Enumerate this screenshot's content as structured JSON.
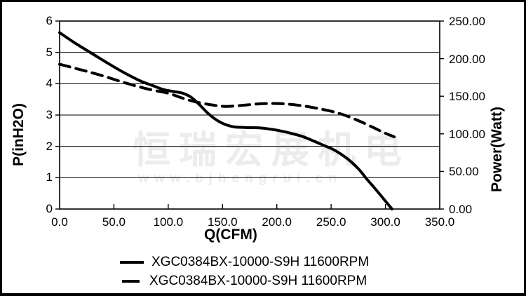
{
  "chart_data": {
    "type": "line",
    "xlabel": "Q(CFM)",
    "ylabel_left": "P(inH2O)",
    "ylabel_right": "Power(Watt)",
    "xlim": [
      0,
      350
    ],
    "ylim_left": [
      0,
      6
    ],
    "ylim_right": [
      0,
      250
    ],
    "grid": "horizontal-only",
    "x_ticks": [
      "0.0",
      "50.0",
      "100.0",
      "150.0",
      "200.0",
      "250.0",
      "300.0",
      "350.0"
    ],
    "x_tick_values": [
      0,
      50,
      100,
      150,
      200,
      250,
      300,
      350
    ],
    "y_left_ticks": [
      "0",
      "1",
      "2",
      "3",
      "4",
      "5",
      "6"
    ],
    "y_left_tick_values": [
      0,
      1,
      2,
      3,
      4,
      5,
      6
    ],
    "y_right_ticks": [
      "0.00",
      "50.00",
      "100.00",
      "150.00",
      "200.00",
      "250.00"
    ],
    "y_right_tick_values": [
      0,
      50,
      100,
      150,
      200,
      250
    ],
    "series": [
      {
        "name": "XGC0384BX-10000-S9H 11600RPM",
        "quantity": "static pressure",
        "axis": "left",
        "unit": "inH2O",
        "style": "solid",
        "points": [
          [
            0,
            5.63
          ],
          [
            15,
            5.28
          ],
          [
            30,
            4.96
          ],
          [
            45,
            4.64
          ],
          [
            60,
            4.34
          ],
          [
            75,
            4.08
          ],
          [
            85,
            3.95
          ],
          [
            95,
            3.82
          ],
          [
            105,
            3.75
          ],
          [
            113,
            3.7
          ],
          [
            121,
            3.57
          ],
          [
            129,
            3.32
          ],
          [
            137,
            3.04
          ],
          [
            145,
            2.83
          ],
          [
            153,
            2.69
          ],
          [
            161,
            2.62
          ],
          [
            172,
            2.6
          ],
          [
            184,
            2.59
          ],
          [
            194,
            2.55
          ],
          [
            204,
            2.49
          ],
          [
            214,
            2.41
          ],
          [
            224,
            2.31
          ],
          [
            234,
            2.17
          ],
          [
            244,
            2.02
          ],
          [
            252,
            1.9
          ],
          [
            260,
            1.73
          ],
          [
            268,
            1.52
          ],
          [
            276,
            1.25
          ],
          [
            283,
            0.95
          ],
          [
            290,
            0.67
          ],
          [
            297,
            0.38
          ],
          [
            302,
            0.17
          ],
          [
            306,
            0.0
          ]
        ]
      },
      {
        "name": "XGC0384BX-10000-S9H 11600RPM",
        "quantity": "power",
        "axis": "right",
        "unit": "Watt",
        "style": "dashed",
        "points": [
          [
            0,
            192.5
          ],
          [
            20,
            185
          ],
          [
            40,
            177
          ],
          [
            60,
            168
          ],
          [
            80,
            160
          ],
          [
            100,
            154
          ],
          [
            112,
            148
          ],
          [
            125,
            142.5
          ],
          [
            140,
            138.5
          ],
          [
            152,
            136.5
          ],
          [
            165,
            137.5
          ],
          [
            180,
            139.5
          ],
          [
            192,
            140.3
          ],
          [
            205,
            140
          ],
          [
            220,
            138
          ],
          [
            235,
            134.5
          ],
          [
            250,
            130
          ],
          [
            263,
            124.5
          ],
          [
            276,
            117
          ],
          [
            288,
            109
          ],
          [
            298,
            102
          ],
          [
            308,
            96
          ]
        ]
      }
    ]
  },
  "legend": {
    "items": [
      {
        "label": "XGC0384BX-10000-S9H 11600RPM",
        "marker": "solid-line"
      },
      {
        "label": "XGC0384BX-10000-S9H 11600RPM",
        "marker": "dashed-line"
      }
    ]
  },
  "watermark": {
    "line1": "恒瑞宏展机电",
    "line2": "www.bjhengrui.cn"
  },
  "colors": {
    "curve": "#000000",
    "grid": "#000000",
    "frame": "#000000",
    "background": "#ffffff",
    "watermark": "#ececec"
  }
}
